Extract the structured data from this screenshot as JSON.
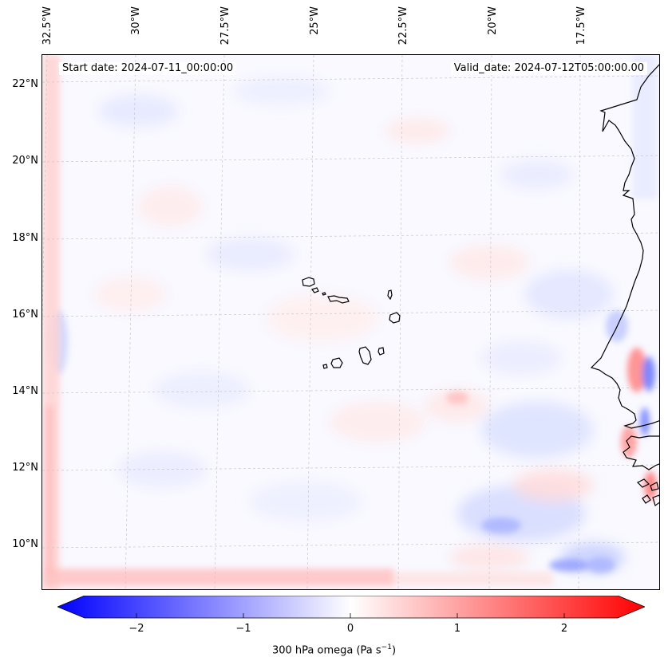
{
  "map": {
    "lon_labels": [
      "32.5°W",
      "30°W",
      "27.5°W",
      "25°W",
      "22.5°W",
      "20°W",
      "17.5°W"
    ],
    "lat_labels": [
      "22°N",
      "20°N",
      "18°N",
      "16°N",
      "14°N",
      "12°N",
      "10°N"
    ],
    "start_date": "Start date: 2024-07-11_00:00:00",
    "valid_date": "Valid_date: 2024-07-12T05:00:00.00"
  },
  "colorbar": {
    "ticks": [
      "−2",
      "−1",
      "0",
      "1",
      "2"
    ],
    "label_main": "300 hPa omega (Pa s",
    "label_sup": "−1",
    "label_end": ")",
    "min_color": "#0000ff",
    "mid_color": "#ffffff",
    "max_color": "#ff0000"
  }
}
